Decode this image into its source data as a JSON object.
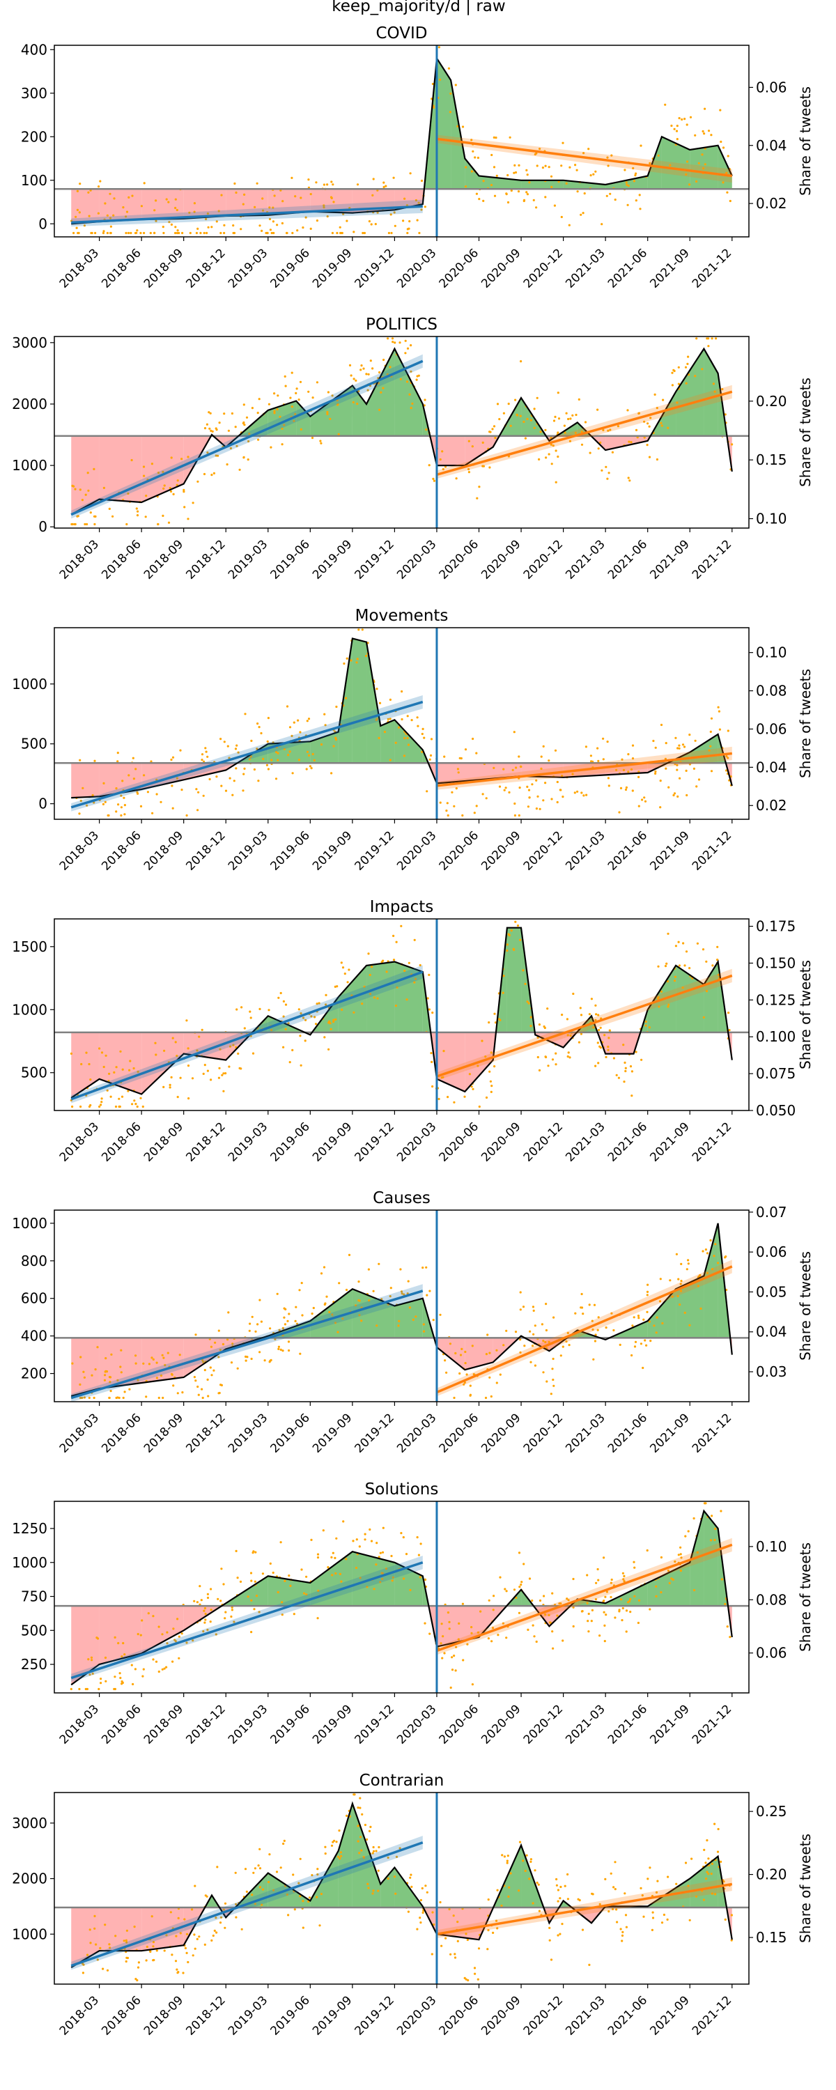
{
  "figure": {
    "title": "keep_majority/d | raw"
  },
  "colors": {
    "smoothed_line": "#000000",
    "above_fill": "#2ca02c",
    "below_fill": "#ff9999",
    "scatter": "#ffa500",
    "trend_pre": "#1f77b4",
    "trend_post": "#ff7f0e",
    "baseline": "#808080",
    "event_line": "#1f77b4"
  },
  "shared": {
    "x_tick_labels": [
      "2018-03",
      "2018-06",
      "2018-09",
      "2018-12",
      "2019-03",
      "2019-06",
      "2019-09",
      "2019-12",
      "2020-03",
      "2020-06",
      "2020-09",
      "2020-12",
      "2021-03",
      "2021-06",
      "2021-09",
      "2021-12"
    ],
    "x_range": [
      "2018-01",
      "2021-12"
    ],
    "event_date": "2020-03",
    "right_axis_label": "Share of tweets"
  },
  "chart_data": [
    {
      "type": "line",
      "title": "COVID",
      "ylabel_right": "Share of tweets",
      "ylim": [
        -30,
        410
      ],
      "yticks": [
        0,
        100,
        200,
        300,
        400
      ],
      "ylim_right": [
        0.0085,
        0.0745
      ],
      "yticks_right": [
        0.02,
        0.04,
        0.06
      ],
      "ytick_labels_right": [
        "0.02",
        "0.04",
        "0.06"
      ],
      "baseline": 80,
      "x": [
        "2018-01",
        "2018-03",
        "2018-06",
        "2018-09",
        "2018-12",
        "2019-03",
        "2019-06",
        "2019-09",
        "2019-12",
        "2020-02",
        "2020-03",
        "2020-04",
        "2020-05",
        "2020-06",
        "2020-09",
        "2020-12",
        "2021-03",
        "2021-06",
        "2021-07",
        "2021-09",
        "2021-11",
        "2021-12"
      ],
      "smoothed": [
        0,
        5,
        10,
        12,
        18,
        20,
        28,
        25,
        32,
        45,
        380,
        330,
        150,
        110,
        100,
        100,
        90,
        110,
        200,
        170,
        180,
        110
      ],
      "trend_pre": {
        "start": [
          "2018-01",
          3
        ],
        "end": [
          "2020-02",
          40
        ]
      },
      "trend_post": {
        "start": [
          "2020-03",
          195
        ],
        "end": [
          "2021-12",
          110
        ]
      }
    },
    {
      "type": "line",
      "title": "POLITICS",
      "ylabel_right": "Share of tweets",
      "ylim": [
        -20,
        3100
      ],
      "yticks": [
        0,
        1000,
        2000,
        3000
      ],
      "ylim_right": [
        0.092,
        0.255
      ],
      "yticks_right": [
        0.1,
        0.15,
        0.2
      ],
      "ytick_labels_right": [
        "0.10",
        "0.15",
        "0.20"
      ],
      "baseline": 1480,
      "x": [
        "2018-01",
        "2018-03",
        "2018-06",
        "2018-09",
        "2018-11",
        "2018-12",
        "2019-03",
        "2019-05",
        "2019-06",
        "2019-09",
        "2019-10",
        "2019-12",
        "2020-02",
        "2020-03",
        "2020-05",
        "2020-07",
        "2020-09",
        "2020-11",
        "2021-01",
        "2021-03",
        "2021-06",
        "2021-08",
        "2021-10",
        "2021-11",
        "2021-12"
      ],
      "smoothed": [
        200,
        450,
        400,
        700,
        1500,
        1300,
        1900,
        2050,
        1800,
        2300,
        2000,
        2900,
        2000,
        1000,
        1000,
        1300,
        2100,
        1400,
        1700,
        1250,
        1400,
        2200,
        2900,
        2500,
        900
      ],
      "trend_pre": {
        "start": [
          "2018-01",
          200
        ],
        "end": [
          "2020-02",
          2700
        ]
      },
      "trend_post": {
        "start": [
          "2020-03",
          850
        ],
        "end": [
          "2021-12",
          2200
        ]
      }
    },
    {
      "type": "line",
      "title": "Movements",
      "ylabel_right": "Share of tweets",
      "ylim": [
        -130,
        1470
      ],
      "yticks": [
        0,
        500,
        1000
      ],
      "ylim_right": [
        0.0128,
        0.113
      ],
      "yticks_right": [
        0.02,
        0.04,
        0.06,
        0.08,
        0.1
      ],
      "ytick_labels_right": [
        "0.02",
        "0.04",
        "0.06",
        "0.08",
        "0.10"
      ],
      "baseline": 340,
      "x": [
        "2018-01",
        "2018-03",
        "2018-06",
        "2018-09",
        "2018-12",
        "2019-03",
        "2019-06",
        "2019-08",
        "2019-09",
        "2019-10",
        "2019-11",
        "2019-12",
        "2020-02",
        "2020-03",
        "2020-06",
        "2020-09",
        "2020-12",
        "2021-03",
        "2021-06",
        "2021-09",
        "2021-11",
        "2021-12"
      ],
      "smoothed": [
        50,
        60,
        120,
        200,
        280,
        500,
        520,
        600,
        1380,
        1350,
        650,
        700,
        450,
        170,
        200,
        230,
        220,
        240,
        260,
        430,
        580,
        150
      ],
      "trend_pre": {
        "start": [
          "2018-01",
          -30
        ],
        "end": [
          "2020-02",
          850
        ]
      },
      "trend_post": {
        "start": [
          "2020-03",
          150
        ],
        "end": [
          "2021-12",
          420
        ]
      }
    },
    {
      "type": "line",
      "title": "Impacts",
      "ylabel_right": "Share of tweets",
      "ylim": [
        200,
        1720
      ],
      "yticks": [
        500,
        1000,
        1500
      ],
      "ylim_right": [
        0.05,
        0.18
      ],
      "yticks_right": [
        0.05,
        0.075,
        0.1,
        0.125,
        0.15,
        0.175
      ],
      "ytick_labels_right": [
        "0.050",
        "0.075",
        "0.100",
        "0.125",
        "0.150",
        "0.175"
      ],
      "baseline": 820,
      "x": [
        "2018-01",
        "2018-03",
        "2018-06",
        "2018-09",
        "2018-12",
        "2019-03",
        "2019-06",
        "2019-08",
        "2019-10",
        "2019-12",
        "2020-02",
        "2020-03",
        "2020-05",
        "2020-07",
        "2020-08",
        "2020-09",
        "2020-10",
        "2020-12",
        "2021-02",
        "2021-03",
        "2021-05",
        "2021-06",
        "2021-08",
        "2021-10",
        "2021-11",
        "2021-12"
      ],
      "smoothed": [
        300,
        450,
        330,
        650,
        600,
        950,
        800,
        1100,
        1350,
        1380,
        1300,
        450,
        350,
        600,
        1650,
        1650,
        800,
        700,
        950,
        650,
        650,
        1000,
        1350,
        1200,
        1380,
        600
      ],
      "trend_pre": {
        "start": [
          "2018-01",
          290
        ],
        "end": [
          "2020-02",
          1300
        ]
      },
      "trend_post": {
        "start": [
          "2020-03",
          470
        ],
        "end": [
          "2021-12",
          1270
        ]
      }
    },
    {
      "type": "line",
      "title": "Causes",
      "ylabel_right": "Share of tweets",
      "ylim": [
        50,
        1070
      ],
      "yticks": [
        200,
        400,
        600,
        800,
        1000
      ],
      "ylim_right": [
        0.0225,
        0.0705
      ],
      "yticks_right": [
        0.03,
        0.04,
        0.05,
        0.06,
        0.07
      ],
      "ytick_labels_right": [
        "0.03",
        "0.04",
        "0.05",
        "0.06",
        "0.07"
      ],
      "baseline": 390,
      "x": [
        "2018-01",
        "2018-03",
        "2018-06",
        "2018-09",
        "2018-12",
        "2019-03",
        "2019-06",
        "2019-09",
        "2019-12",
        "2020-02",
        "2020-03",
        "2020-05",
        "2020-07",
        "2020-09",
        "2020-11",
        "2021-01",
        "2021-03",
        "2021-06",
        "2021-08",
        "2021-10",
        "2021-11",
        "2021-12"
      ],
      "smoothed": [
        80,
        120,
        150,
        180,
        330,
        400,
        480,
        650,
        560,
        600,
        340,
        220,
        260,
        400,
        320,
        430,
        380,
        480,
        650,
        720,
        1000,
        300
      ],
      "trend_pre": {
        "start": [
          "2018-01",
          70
        ],
        "end": [
          "2020-02",
          640
        ]
      },
      "trend_post": {
        "start": [
          "2020-03",
          100
        ],
        "end": [
          "2021-12",
          770
        ]
      }
    },
    {
      "type": "line",
      "title": "Solutions",
      "ylabel_right": "Share of tweets",
      "ylim": [
        40,
        1450
      ],
      "yticks": [
        250,
        500,
        750,
        1000,
        1250
      ],
      "ylim_right": [
        0.045,
        0.117
      ],
      "yticks_right": [
        0.06,
        0.08,
        0.1
      ],
      "ytick_labels_right": [
        "0.06",
        "0.08",
        "0.10"
      ],
      "baseline": 680,
      "x": [
        "2018-01",
        "2018-03",
        "2018-06",
        "2018-09",
        "2018-12",
        "2019-03",
        "2019-06",
        "2019-09",
        "2019-12",
        "2020-02",
        "2020-03",
        "2020-06",
        "2020-09",
        "2020-11",
        "2021-01",
        "2021-03",
        "2021-06",
        "2021-09",
        "2021-10",
        "2021-11",
        "2021-12"
      ],
      "smoothed": [
        100,
        250,
        330,
        500,
        700,
        900,
        850,
        1080,
        1000,
        900,
        380,
        450,
        800,
        530,
        730,
        700,
        850,
        1000,
        1380,
        1250,
        450
      ],
      "trend_pre": {
        "start": [
          "2018-01",
          150
        ],
        "end": [
          "2020-02",
          1000
        ]
      },
      "trend_post": {
        "start": [
          "2020-03",
          350
        ],
        "end": [
          "2021-12",
          1130
        ]
      }
    },
    {
      "type": "line",
      "title": "Contrarian",
      "ylabel_right": "Share of tweets",
      "ylim": [
        100,
        3550
      ],
      "yticks": [
        1000,
        2000,
        3000
      ],
      "ylim_right": [
        0.113,
        0.265
      ],
      "yticks_right": [
        0.15,
        0.2,
        0.25
      ],
      "ytick_labels_right": [
        "0.15",
        "0.20",
        "0.25"
      ],
      "baseline": 1480,
      "x": [
        "2018-01",
        "2018-03",
        "2018-06",
        "2018-09",
        "2018-11",
        "2018-12",
        "2019-03",
        "2019-06",
        "2019-08",
        "2019-09",
        "2019-11",
        "2019-12",
        "2020-02",
        "2020-03",
        "2020-06",
        "2020-09",
        "2020-11",
        "2020-12",
        "2021-02",
        "2021-03",
        "2021-06",
        "2021-09",
        "2021-11",
        "2021-12"
      ],
      "smoothed": [
        400,
        700,
        700,
        800,
        1700,
        1300,
        2100,
        1600,
        2500,
        3350,
        1900,
        2200,
        1500,
        1000,
        900,
        2600,
        1200,
        1600,
        1200,
        1500,
        1500,
        2000,
        2400,
        900
      ],
      "trend_pre": {
        "start": [
          "2018-01",
          430
        ],
        "end": [
          "2020-02",
          2650
        ]
      },
      "trend_post": {
        "start": [
          "2020-03",
          1000
        ],
        "end": [
          "2021-12",
          1900
        ]
      }
    }
  ]
}
